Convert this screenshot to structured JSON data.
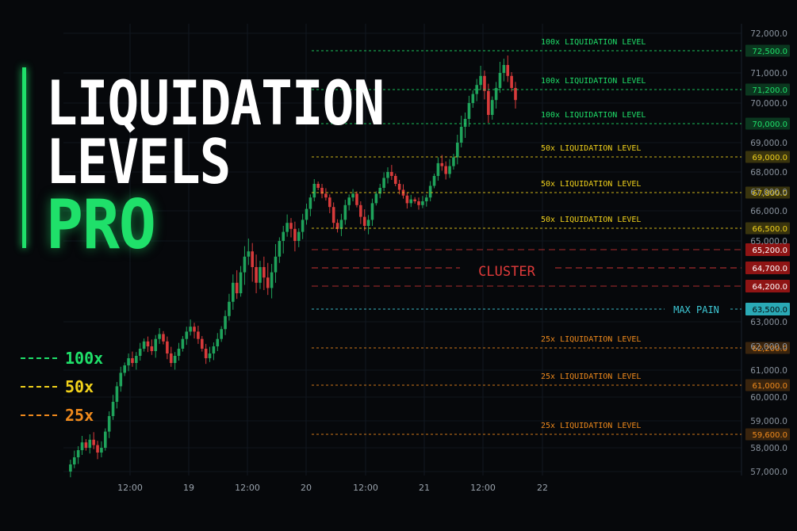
{
  "title": {
    "line1": "LIQUIDATION",
    "line2": "LEVELS",
    "line3": "PRO"
  },
  "legend": [
    {
      "label": "100x",
      "color": "#1fe06a"
    },
    {
      "label": "50x",
      "color": "#f2d21b"
    },
    {
      "label": "25x",
      "color": "#f08a1c"
    }
  ],
  "colors": {
    "up_candle": "#1fa35b",
    "down_candle": "#d83b3b",
    "lev100": "#1fe06a",
    "lev50": "#f2d21b",
    "lev25": "#f08a1c",
    "cluster": "#e03a3a",
    "max_pain": "#3ec9d6"
  },
  "chart_data": {
    "type": "candlestick",
    "y_axis": {
      "min": 57000,
      "max": 72000,
      "ticks": [
        "72,000.0",
        "71,000.0",
        "70,000.0",
        "69,000.0",
        "68,000.0",
        "67,000.0",
        "66,000.0",
        "65,000.0",
        "63,000.0",
        "62,000.0",
        "61,000.0",
        "60,000.0",
        "59,000.0",
        "58,000.0",
        "57,000.0"
      ]
    },
    "x_axis": {
      "ticks": [
        "12:00",
        "19",
        "12:00",
        "20",
        "12:00",
        "21",
        "12:00",
        "22"
      ]
    },
    "levels": [
      {
        "label": "100x LIQUIDATION LEVEL",
        "price": 72500,
        "price_label": "72,500.0",
        "tier": "100x"
      },
      {
        "label": "100x LIQUIDATION LEVEL",
        "price": 71200,
        "price_label": "71,200.0",
        "tier": "100x"
      },
      {
        "label": "100x LIQUIDATION LEVEL",
        "price": 70000,
        "price_label": "70,000.0",
        "tier": "100x"
      },
      {
        "label": "50x LIQUIDATION LEVEL",
        "price": 69000,
        "price_label": "69,000.0",
        "tier": "50x"
      },
      {
        "label": "50x LIQUIDATION LEVEL",
        "price": 67800,
        "price_label": "67,800.0",
        "tier": "50x"
      },
      {
        "label": "50x LIQUIDATION LEVEL",
        "price": 66500,
        "price_label": "66,500.0",
        "tier": "50x"
      },
      {
        "label": "25x LIQUIDATION LEVEL",
        "price": 62200,
        "price_label": "62,200.0",
        "tier": "25x"
      },
      {
        "label": "25x LIQUIDATION LEVEL",
        "price": 61000,
        "price_label": "61,000.0",
        "tier": "25x"
      },
      {
        "label": "25x LIQUIDATION LEVEL",
        "price": 59600,
        "price_label": "59,600.0",
        "tier": "25x"
      }
    ],
    "cluster": {
      "label": "CLUSTER",
      "levels": [
        {
          "price": 65200,
          "price_label": "65,200.0"
        },
        {
          "price": 64700,
          "price_label": "64,700.0"
        },
        {
          "price": 64200,
          "price_label": "64,200.0"
        }
      ]
    },
    "max_pain": {
      "label": "MAX PAIN",
      "price": 63500,
      "price_label": "63,500.0"
    },
    "candles": {
      "start_x_tick": 0,
      "closes": [
        57000,
        57300,
        57600,
        57900,
        58200,
        58000,
        58300,
        58100,
        57800,
        58000,
        58600,
        59200,
        59800,
        60400,
        60900,
        61200,
        61500,
        61300,
        61600,
        61900,
        62200,
        62000,
        61800,
        62300,
        62500,
        62200,
        61700,
        61300,
        61600,
        61900,
        62300,
        62600,
        62800,
        62600,
        62300,
        61900,
        61500,
        61700,
        62000,
        62300,
        62700,
        63200,
        63700,
        64200,
        64000,
        64400,
        64700,
        64800,
        64500,
        64200,
        64500,
        64300,
        64100,
        64400,
        64700,
        65000,
        65300,
        65600,
        65400,
        65000,
        65300,
        65700,
        66100,
        66700,
        67400,
        67200,
        66900,
        66700,
        66200,
        65600,
        65400,
        65700,
        66300,
        66700,
        66900,
        66300,
        65800,
        65500,
        65700,
        66400,
        66900,
        67200,
        67700,
        68000,
        67800,
        67400,
        67100,
        66800,
        66400,
        66600,
        66500,
        66300,
        66500,
        66700,
        67300,
        67800,
        68300,
        68200,
        67900,
        68200,
        68500,
        69000,
        69400,
        69600,
        70000,
        70300,
        70600,
        70900,
        70400,
        69700,
        70100,
        70500,
        71000,
        71200,
        70900,
        70500,
        70100
      ],
      "x_range": [
        0.0,
        116.0
      ]
    }
  }
}
